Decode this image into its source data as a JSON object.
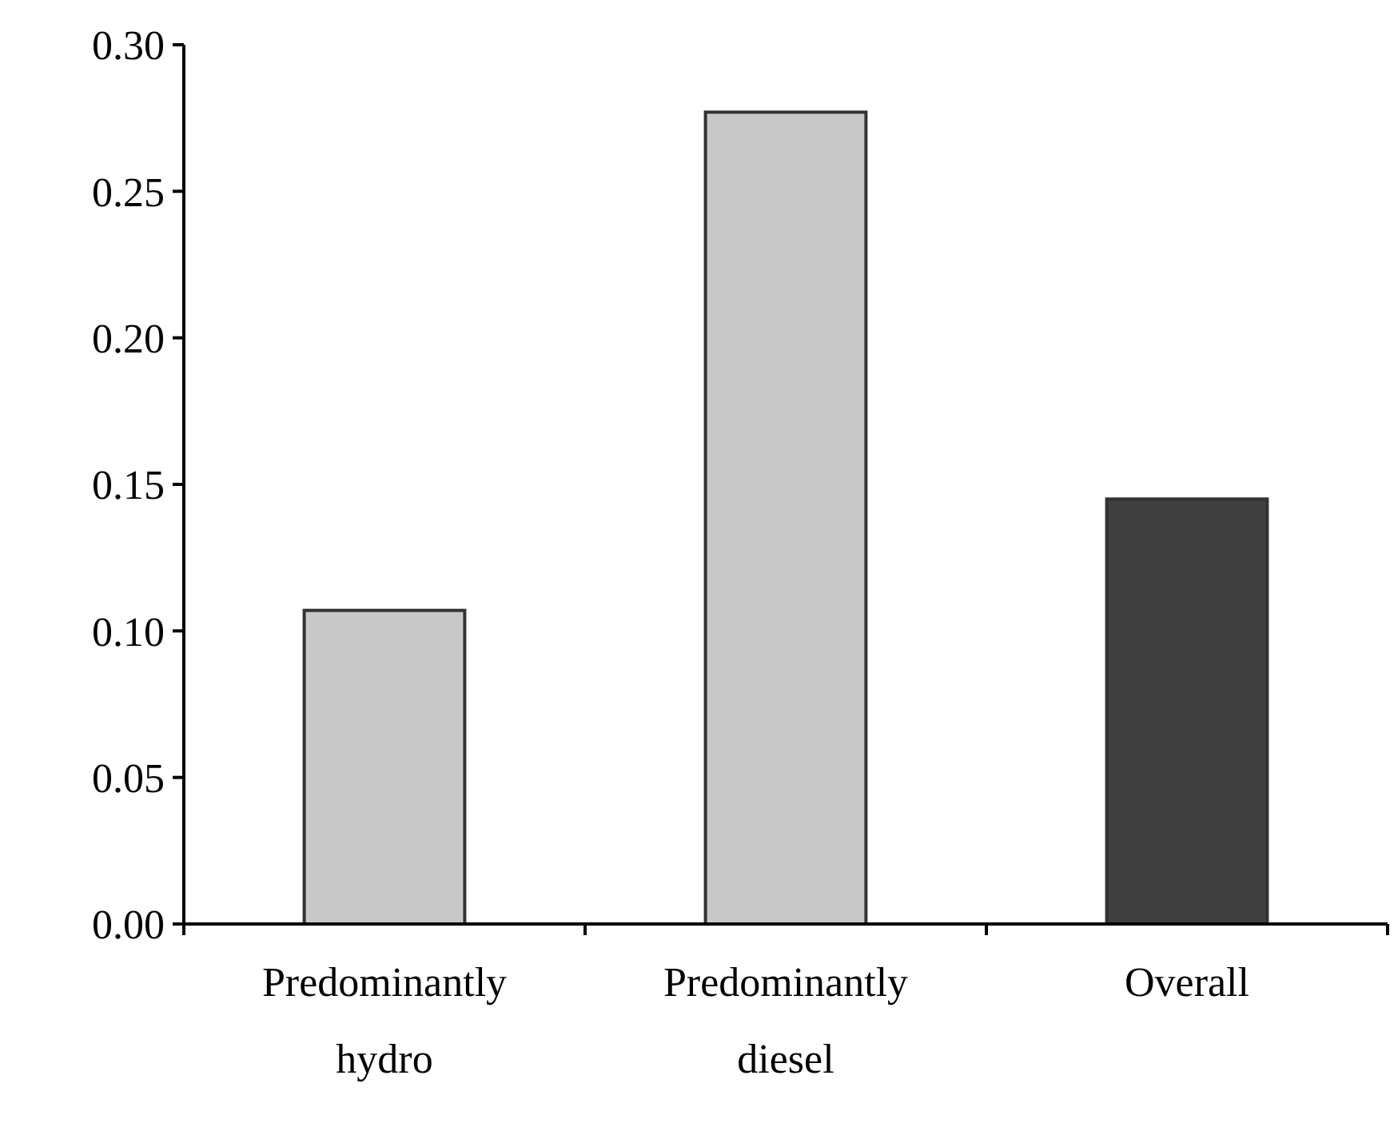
{
  "chart_data": {
    "type": "bar",
    "categories": [
      "Predominantly hydro",
      "Predominantly diesel",
      "Overall"
    ],
    "values": [
      0.107,
      0.277,
      0.145
    ],
    "colors": [
      "#c8c8c8",
      "#c8c8c8",
      "#404040"
    ],
    "ylim": [
      0,
      0.3
    ],
    "yticks": [
      {
        "value": 0,
        "label": "0.00"
      },
      {
        "value": 0.05,
        "label": "0.05"
      },
      {
        "value": 0.1,
        "label": "0.10"
      },
      {
        "value": 0.15,
        "label": "0.15"
      },
      {
        "value": 0.2,
        "label": "0.20"
      },
      {
        "value": 0.25,
        "label": "0.25"
      },
      {
        "value": 0.3,
        "label": "0.30"
      }
    ],
    "grid": false
  }
}
